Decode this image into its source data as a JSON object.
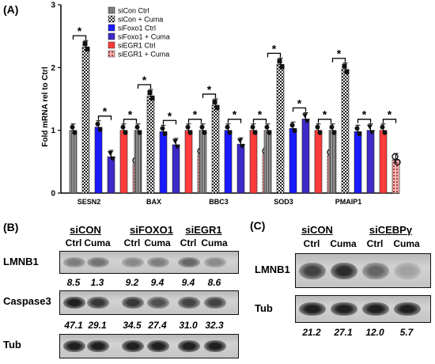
{
  "figure": {
    "panel_a_label": "(A)",
    "panel_b_label": "(B)",
    "panel_c_label": "(C)"
  },
  "chart_data": {
    "type": "bar",
    "ylabel": "Fold mRNA rel to Ctrl",
    "xlabel": "",
    "ylim": [
      0,
      3
    ],
    "yticks": [
      "0",
      "1",
      "2",
      "3"
    ],
    "categories": [
      "SESN2",
      "BAX",
      "BBC3",
      "SOD3",
      "PMAIP1"
    ],
    "series": [
      {
        "name": "siCon Ctrl",
        "color": "#8c8c8c",
        "pattern": "vstripe",
        "values": [
          1.0,
          1.0,
          1.0,
          1.0,
          1.0
        ]
      },
      {
        "name": "siCon + Cuma",
        "color": "#333333",
        "pattern": "checker",
        "values": [
          2.33,
          1.55,
          1.4,
          2.05,
          1.97
        ]
      },
      {
        "name": "siFoxo1 Ctrl",
        "color": "#1a1aff",
        "pattern": "solid",
        "values": [
          1.05,
          0.98,
          1.0,
          1.03,
          0.98
        ]
      },
      {
        "name": "siFoxo1 + Cuma",
        "color": "#3d2ac7",
        "pattern": "solid",
        "values": [
          0.58,
          0.77,
          0.78,
          1.18,
          1.0
        ]
      },
      {
        "name": "siEGR1 Ctrl",
        "color": "#ff3b3b",
        "pattern": "solid",
        "values": [
          1.0,
          1.0,
          1.0,
          1.0,
          1.0
        ]
      },
      {
        "name": "siEGR1 + Cuma",
        "color": "#f07a7a",
        "pattern": "dots",
        "values": [
          0.47,
          0.62,
          0.62,
          0.6,
          0.53
        ]
      }
    ],
    "significance": "*",
    "legend_position": "top-left"
  },
  "panel_b": {
    "groups": [
      "siCON",
      "siFOXO1",
      "siEGR1"
    ],
    "lanes": [
      "Ctrl",
      "Cuma",
      "Ctrl",
      "Cuma",
      "Ctrl",
      "Cuma"
    ],
    "blots": [
      {
        "protein": "LMNB1",
        "quant": [
          "8.5",
          "1.3",
          "9.2",
          "9.4",
          "9.4",
          "8.6"
        ],
        "intensity": [
          0.55,
          0.6,
          0.5,
          0.55,
          0.65,
          0.5
        ]
      },
      {
        "protein": "Caspase3",
        "quant": [
          "47.1",
          "29.1",
          "34.5",
          "27.4",
          "31.0",
          "32.3"
        ],
        "intensity": [
          0.95,
          0.85,
          0.85,
          0.75,
          0.8,
          0.8
        ]
      },
      {
        "protein": "Tub",
        "quant": [],
        "intensity": [
          0.95,
          0.95,
          0.95,
          0.95,
          0.95,
          0.95
        ]
      }
    ]
  },
  "panel_c": {
    "groups": [
      "siCON",
      "siCEBPγ"
    ],
    "lanes": [
      "Ctrl",
      "Cuma",
      "Ctrl",
      "Cuma"
    ],
    "blots": [
      {
        "protein": "LMNB1",
        "quant": [
          "21.2",
          "27.1",
          "12.0",
          "5.7"
        ],
        "intensity": [
          0.8,
          0.9,
          0.65,
          0.4
        ]
      },
      {
        "protein": "Tub",
        "quant": [],
        "intensity": [
          0.95,
          0.95,
          0.95,
          0.95
        ]
      }
    ]
  }
}
